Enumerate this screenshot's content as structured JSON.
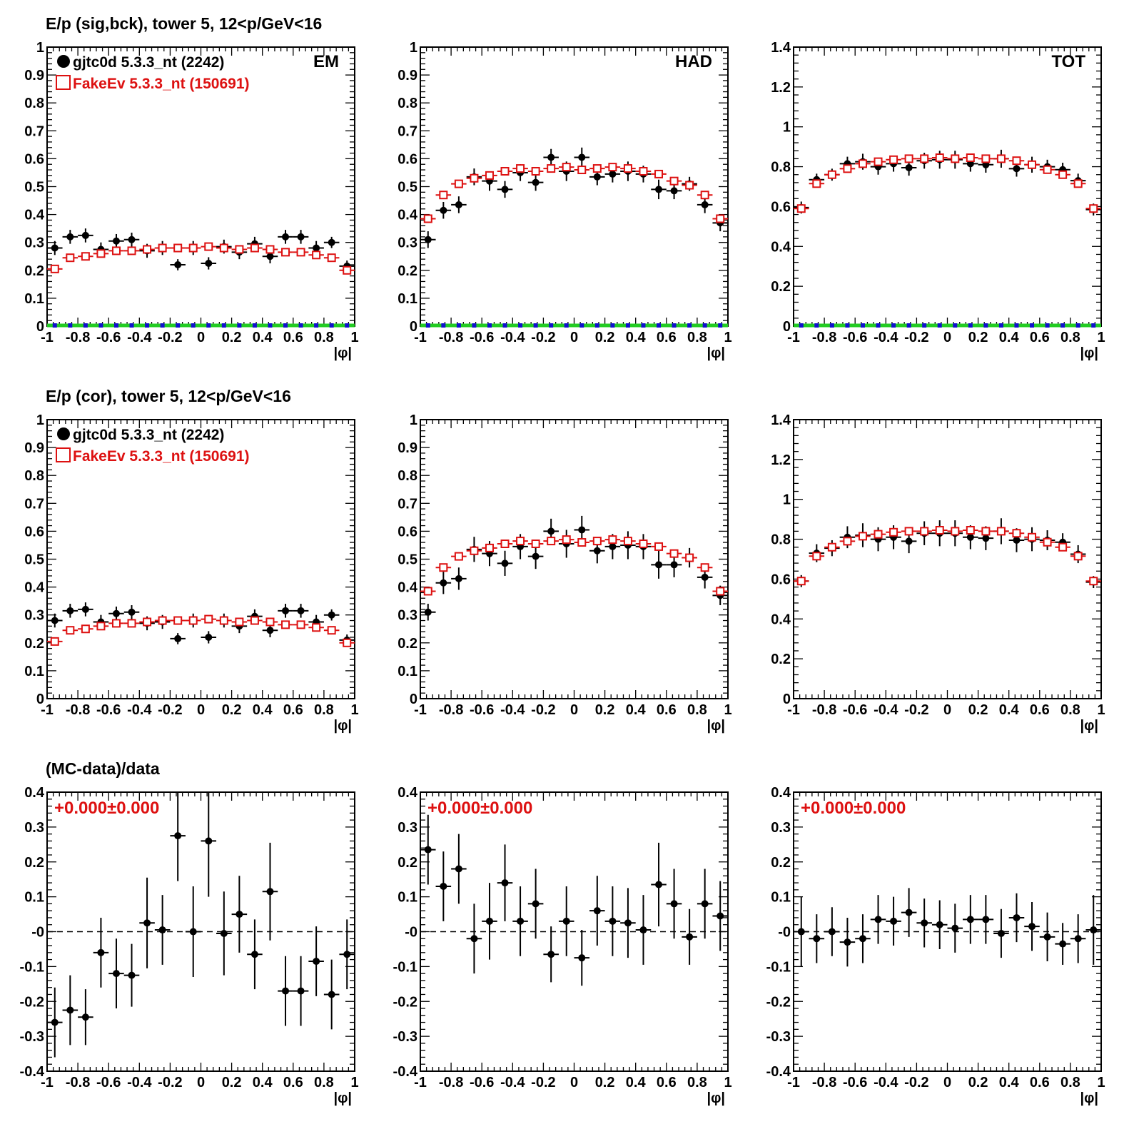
{
  "row_titles": [
    "E/p (sig,bck), tower 5, 12<p/GeV<16",
    "E/p (cor), tower 5, 12<p/GeV<16",
    "(MC-data)/data"
  ],
  "colors": {
    "data": "#000000",
    "mc": "#dd1111",
    "zero_line_green": "#22cc22",
    "zero_marker_blue": "#1111cc",
    "axis": "#000000"
  },
  "chart_data": [
    {
      "type": "scatter",
      "row": 0,
      "col": 0,
      "panel_label": "EM",
      "xlabel": "|φ|",
      "xlim": [
        -1,
        1
      ],
      "ylim": [
        0,
        1
      ],
      "yticks": [
        0,
        0.1,
        0.2,
        0.3,
        0.4,
        0.5,
        0.6,
        0.7,
        0.8,
        0.9,
        1
      ],
      "yticklabels": [
        "0",
        "0.1",
        "0.2",
        "0.3",
        "0.4",
        "0.5",
        "0.6",
        "0.7",
        "0.8",
        "0.9",
        "1"
      ],
      "legend": [
        "gjtc0d 5.3.3_nt (2242)",
        "FakeEv 5.3.3_nt (150691)"
      ],
      "zero_band": true,
      "series": [
        {
          "name": "gjtc0d 5.3.3_nt (2242)",
          "marker": "filled-circle",
          "y": [
            0.28,
            0.32,
            0.325,
            0.275,
            0.305,
            0.31,
            0.27,
            0.28,
            0.22,
            0.28,
            0.225,
            0.285,
            0.265,
            0.295,
            0.25,
            0.32,
            0.32,
            0.28,
            0.3,
            0.215
          ],
          "yerr": [
            0.025,
            0.025,
            0.025,
            0.025,
            0.025,
            0.025,
            0.025,
            0.025,
            0.02,
            0.025,
            0.022,
            0.025,
            0.025,
            0.025,
            0.025,
            0.025,
            0.025,
            0.025,
            0.02,
            0.02
          ]
        },
        {
          "name": "FakeEv 5.3.3_nt (150691)",
          "marker": "open-square",
          "y": [
            0.205,
            0.245,
            0.25,
            0.26,
            0.27,
            0.27,
            0.275,
            0.28,
            0.28,
            0.28,
            0.285,
            0.28,
            0.275,
            0.28,
            0.275,
            0.265,
            0.265,
            0.255,
            0.245,
            0.2
          ]
        }
      ]
    },
    {
      "type": "scatter",
      "row": 0,
      "col": 1,
      "panel_label": "HAD",
      "xlabel": "|φ|",
      "xlim": [
        -1,
        1
      ],
      "ylim": [
        0,
        1
      ],
      "yticks": [
        0,
        0.1,
        0.2,
        0.3,
        0.4,
        0.5,
        0.6,
        0.7,
        0.8,
        0.9,
        1
      ],
      "yticklabels": [
        "0",
        "0.1",
        "0.2",
        "0.3",
        "0.4",
        "0.5",
        "0.6",
        "0.7",
        "0.8",
        "0.9",
        "1"
      ],
      "zero_band": true,
      "series": [
        {
          "name": "",
          "marker": "filled-circle",
          "y": [
            0.31,
            0.415,
            0.435,
            0.535,
            0.52,
            0.49,
            0.55,
            0.515,
            0.605,
            0.555,
            0.605,
            0.535,
            0.545,
            0.555,
            0.545,
            0.49,
            0.485,
            0.51,
            0.435,
            0.37
          ],
          "yerr": [
            0.03,
            0.03,
            0.03,
            0.03,
            0.035,
            0.03,
            0.03,
            0.03,
            0.03,
            0.035,
            0.035,
            0.03,
            0.03,
            0.035,
            0.03,
            0.035,
            0.03,
            0.025,
            0.03,
            0.03
          ]
        },
        {
          "name": "",
          "marker": "open-square",
          "y": [
            0.385,
            0.47,
            0.51,
            0.53,
            0.54,
            0.555,
            0.565,
            0.555,
            0.565,
            0.57,
            0.56,
            0.565,
            0.57,
            0.565,
            0.555,
            0.545,
            0.52,
            0.505,
            0.47,
            0.385
          ]
        }
      ]
    },
    {
      "type": "scatter",
      "row": 0,
      "col": 2,
      "panel_label": "TOT",
      "xlabel": "|φ|",
      "xlim": [
        -1,
        1
      ],
      "ylim": [
        0,
        1.4
      ],
      "yticks": [
        0,
        0.2,
        0.4,
        0.6,
        0.8,
        1,
        1.2,
        1.4
      ],
      "yticklabels": [
        "0",
        "0.2",
        "0.4",
        "0.6",
        "0.8",
        "1",
        "1.2",
        "1.4"
      ],
      "zero_band": true,
      "series": [
        {
          "name": "",
          "marker": "filled-circle",
          "y": [
            0.595,
            0.735,
            0.76,
            0.815,
            0.825,
            0.8,
            0.815,
            0.795,
            0.83,
            0.835,
            0.835,
            0.815,
            0.81,
            0.84,
            0.79,
            0.81,
            0.8,
            0.785,
            0.73,
            0.585
          ],
          "yerr": [
            0.03,
            0.03,
            0.03,
            0.035,
            0.04,
            0.04,
            0.04,
            0.04,
            0.04,
            0.045,
            0.045,
            0.04,
            0.04,
            0.045,
            0.04,
            0.04,
            0.035,
            0.035,
            0.035,
            0.03
          ]
        },
        {
          "name": "",
          "marker": "open-square",
          "y": [
            0.59,
            0.715,
            0.76,
            0.79,
            0.815,
            0.825,
            0.835,
            0.84,
            0.84,
            0.845,
            0.84,
            0.845,
            0.84,
            0.84,
            0.83,
            0.81,
            0.785,
            0.76,
            0.715,
            0.59
          ]
        }
      ]
    },
    {
      "type": "scatter",
      "row": 1,
      "col": 0,
      "panel_label": "",
      "xlabel": "|φ|",
      "xlim": [
        -1,
        1
      ],
      "ylim": [
        0,
        1
      ],
      "yticks": [
        0,
        0.1,
        0.2,
        0.3,
        0.4,
        0.5,
        0.6,
        0.7,
        0.8,
        0.9,
        1
      ],
      "yticklabels": [
        "0",
        "0.1",
        "0.2",
        "0.3",
        "0.4",
        "0.5",
        "0.6",
        "0.7",
        "0.8",
        "0.9",
        "1"
      ],
      "legend": [
        "gjtc0d 5.3.3_nt (2242)",
        "FakeEv 5.3.3_nt (150691)"
      ],
      "zero_band": false,
      "series": [
        {
          "name": "gjtc0d 5.3.3_nt (2242)",
          "marker": "filled-circle",
          "y": [
            0.28,
            0.315,
            0.32,
            0.275,
            0.305,
            0.31,
            0.27,
            0.275,
            0.215,
            0.28,
            0.22,
            0.28,
            0.26,
            0.295,
            0.245,
            0.315,
            0.315,
            0.275,
            0.3,
            0.21
          ],
          "yerr": [
            0.025,
            0.025,
            0.025,
            0.025,
            0.025,
            0.025,
            0.025,
            0.025,
            0.02,
            0.025,
            0.022,
            0.025,
            0.025,
            0.025,
            0.025,
            0.025,
            0.025,
            0.025,
            0.02,
            0.02
          ]
        },
        {
          "name": "FakeEv 5.3.3_nt (150691)",
          "marker": "open-square",
          "y": [
            0.205,
            0.245,
            0.25,
            0.26,
            0.27,
            0.27,
            0.275,
            0.28,
            0.28,
            0.28,
            0.285,
            0.28,
            0.275,
            0.28,
            0.275,
            0.265,
            0.265,
            0.255,
            0.245,
            0.2
          ]
        }
      ]
    },
    {
      "type": "scatter",
      "row": 1,
      "col": 1,
      "panel_label": "",
      "xlabel": "|φ|",
      "xlim": [
        -1,
        1
      ],
      "ylim": [
        0,
        1
      ],
      "yticks": [
        0,
        0.1,
        0.2,
        0.3,
        0.4,
        0.5,
        0.6,
        0.7,
        0.8,
        0.9,
        1
      ],
      "yticklabels": [
        "0",
        "0.1",
        "0.2",
        "0.3",
        "0.4",
        "0.5",
        "0.6",
        "0.7",
        "0.8",
        "0.9",
        "1"
      ],
      "zero_band": false,
      "series": [
        {
          "name": "",
          "marker": "filled-circle",
          "y": [
            0.31,
            0.415,
            0.43,
            0.535,
            0.52,
            0.485,
            0.545,
            0.51,
            0.6,
            0.555,
            0.605,
            0.53,
            0.545,
            0.55,
            0.545,
            0.48,
            0.48,
            0.505,
            0.435,
            0.37
          ],
          "yerr": [
            0.03,
            0.04,
            0.04,
            0.045,
            0.045,
            0.045,
            0.045,
            0.045,
            0.045,
            0.05,
            0.05,
            0.045,
            0.045,
            0.05,
            0.045,
            0.05,
            0.045,
            0.035,
            0.04,
            0.035
          ]
        },
        {
          "name": "",
          "marker": "open-square",
          "y": [
            0.385,
            0.47,
            0.51,
            0.53,
            0.54,
            0.555,
            0.565,
            0.555,
            0.565,
            0.57,
            0.56,
            0.565,
            0.57,
            0.565,
            0.555,
            0.545,
            0.52,
            0.505,
            0.47,
            0.385
          ]
        }
      ]
    },
    {
      "type": "scatter",
      "row": 1,
      "col": 2,
      "panel_label": "",
      "xlabel": "|φ|",
      "xlim": [
        -1,
        1
      ],
      "ylim": [
        0,
        1.4
      ],
      "yticks": [
        0,
        0.2,
        0.4,
        0.6,
        0.8,
        1,
        1.2,
        1.4
      ],
      "yticklabels": [
        "0",
        "0.2",
        "0.4",
        "0.6",
        "0.8",
        "1",
        "1.2",
        "1.4"
      ],
      "zero_band": false,
      "series": [
        {
          "name": "",
          "marker": "filled-circle",
          "y": [
            0.59,
            0.73,
            0.755,
            0.81,
            0.82,
            0.8,
            0.81,
            0.79,
            0.83,
            0.83,
            0.83,
            0.81,
            0.805,
            0.84,
            0.795,
            0.8,
            0.795,
            0.785,
            0.725,
            0.585
          ],
          "yerr": [
            0.03,
            0.045,
            0.04,
            0.055,
            0.06,
            0.06,
            0.06,
            0.06,
            0.06,
            0.065,
            0.065,
            0.06,
            0.06,
            0.065,
            0.06,
            0.06,
            0.05,
            0.045,
            0.045,
            0.03
          ]
        },
        {
          "name": "",
          "marker": "open-square",
          "y": [
            0.59,
            0.715,
            0.76,
            0.79,
            0.815,
            0.825,
            0.835,
            0.84,
            0.84,
            0.845,
            0.84,
            0.845,
            0.84,
            0.84,
            0.83,
            0.81,
            0.785,
            0.76,
            0.715,
            0.59
          ]
        }
      ]
    },
    {
      "type": "scatter",
      "row": 2,
      "col": 0,
      "panel_label": "",
      "annotation": "+0.000±0.000",
      "xlabel": "|φ|",
      "xlim": [
        -1,
        1
      ],
      "ylim": [
        -0.4,
        0.4
      ],
      "yticks": [
        -0.4,
        -0.3,
        -0.2,
        -0.1,
        0,
        0.1,
        0.2,
        0.3,
        0.4
      ],
      "yticklabels": [
        "-0.4",
        "-0.3",
        "-0.2",
        "-0.1",
        "-0",
        "0.1",
        "0.2",
        "0.3",
        "0.4"
      ],
      "zero_dashed": true,
      "series": [
        {
          "name": "",
          "marker": "filled-circle",
          "y": [
            -0.26,
            -0.225,
            -0.245,
            -0.06,
            -0.12,
            -0.125,
            0.025,
            0.005,
            0.275,
            0,
            0.26,
            -0.005,
            0.05,
            -0.065,
            0.115,
            -0.17,
            -0.17,
            -0.085,
            -0.18,
            -0.065
          ],
          "yerr": [
            0.1,
            0.1,
            0.08,
            0.1,
            0.1,
            0.09,
            0.13,
            0.1,
            0.13,
            0.13,
            0.16,
            0.12,
            0.11,
            0.1,
            0.14,
            0.1,
            0.1,
            0.1,
            0.1,
            0.1
          ]
        }
      ]
    },
    {
      "type": "scatter",
      "row": 2,
      "col": 1,
      "panel_label": "",
      "annotation": "+0.000±0.000",
      "xlabel": "|φ|",
      "xlim": [
        -1,
        1
      ],
      "ylim": [
        -0.4,
        0.4
      ],
      "yticks": [
        -0.4,
        -0.3,
        -0.2,
        -0.1,
        0,
        0.1,
        0.2,
        0.3,
        0.4
      ],
      "yticklabels": [
        "-0.4",
        "-0.3",
        "-0.2",
        "-0.1",
        "-0",
        "0.1",
        "0.2",
        "0.3",
        "0.4"
      ],
      "zero_dashed": true,
      "series": [
        {
          "name": "",
          "marker": "filled-circle",
          "y": [
            0.235,
            0.13,
            0.18,
            -0.02,
            0.03,
            0.14,
            0.03,
            0.08,
            -0.065,
            0.03,
            -0.075,
            0.06,
            0.03,
            0.025,
            0.005,
            0.135,
            0.08,
            -0.015,
            0.08,
            0.045
          ],
          "yerr": [
            0.1,
            0.1,
            0.1,
            0.1,
            0.11,
            0.11,
            0.1,
            0.1,
            0.08,
            0.1,
            0.08,
            0.1,
            0.1,
            0.1,
            0.1,
            0.12,
            0.1,
            0.08,
            0.1,
            0.1
          ]
        }
      ]
    },
    {
      "type": "scatter",
      "row": 2,
      "col": 2,
      "panel_label": "",
      "annotation": "+0.000±0.000",
      "xlabel": "|φ|",
      "xlim": [
        -1,
        1
      ],
      "ylim": [
        -0.4,
        0.4
      ],
      "yticks": [
        -0.4,
        -0.3,
        -0.2,
        -0.1,
        0,
        0.1,
        0.2,
        0.3,
        0.4
      ],
      "yticklabels": [
        "-0.4",
        "-0.3",
        "-0.2",
        "-0.1",
        "-0",
        "0.1",
        "0.2",
        "0.3",
        "0.4"
      ],
      "zero_dashed": true,
      "series": [
        {
          "name": "",
          "marker": "filled-circle",
          "y": [
            0,
            -0.02,
            0,
            -0.03,
            -0.02,
            0.035,
            0.03,
            0.055,
            0.025,
            0.02,
            0.01,
            0.035,
            0.035,
            -0.005,
            0.04,
            0.015,
            -0.015,
            -0.035,
            -0.02,
            0.005
          ],
          "yerr": [
            0.1,
            0.07,
            0.07,
            0.07,
            0.07,
            0.07,
            0.07,
            0.07,
            0.07,
            0.07,
            0.07,
            0.07,
            0.07,
            0.07,
            0.07,
            0.07,
            0.07,
            0.06,
            0.07,
            0.1
          ]
        }
      ]
    }
  ],
  "xticks": [
    -1,
    -0.8,
    -0.6,
    -0.4,
    -0.2,
    0,
    0.2,
    0.4,
    0.6,
    0.8,
    1
  ],
  "xticklabels": [
    "-1",
    "-0.8",
    "-0.6",
    "-0.4",
    "-0.2",
    "0",
    "0.2",
    "0.4",
    "0.6",
    "0.8",
    "1"
  ]
}
